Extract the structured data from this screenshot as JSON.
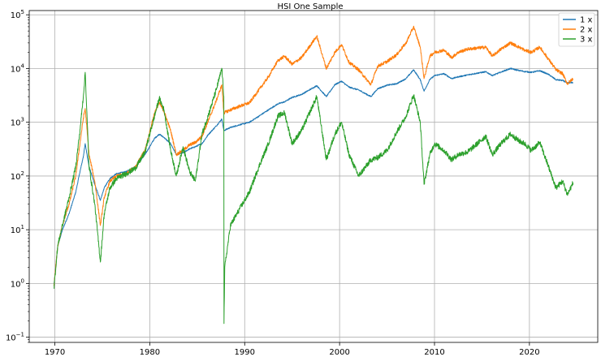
{
  "chart_data": {
    "type": "line",
    "title": "HSI One Sample",
    "xlabel": "",
    "ylabel": "",
    "xlim": [
      1967.3,
      2027.2
    ],
    "ylim": [
      0.08,
      120000
    ],
    "yscale": "log",
    "grid": true,
    "legend": "top-right",
    "x_ticks": [
      1970,
      1980,
      1990,
      2000,
      2010,
      2020
    ],
    "y_ticks": [
      {
        "value": 0.1,
        "base": "10",
        "exp": "−1"
      },
      {
        "value": 1,
        "base": "10",
        "exp": "0"
      },
      {
        "value": 10,
        "base": "10",
        "exp": "1"
      },
      {
        "value": 100,
        "base": "10",
        "exp": "2"
      },
      {
        "value": 1000,
        "base": "10",
        "exp": "3"
      },
      {
        "value": 10000,
        "base": "10",
        "exp": "4"
      },
      {
        "value": 100000,
        "base": "10",
        "exp": "5"
      }
    ],
    "series": [
      {
        "name": "1 x",
        "color": "#1f77b4",
        "x": [
          1969.9,
          1970.3,
          1970.8,
          1971.5,
          1972.2,
          1972.6,
          1973.0,
          1973.2,
          1973.6,
          1974.2,
          1974.8,
          1975.2,
          1975.8,
          1976.5,
          1977.5,
          1978.5,
          1979.5,
          1980.5,
          1981.0,
          1981.5,
          1982.2,
          1982.8,
          1983.5,
          1984.2,
          1984.8,
          1985.5,
          1986.2,
          1987.0,
          1987.6,
          1987.8,
          1988.5,
          1989.5,
          1990.5,
          1991.5,
          1992.5,
          1993.5,
          1994.2,
          1995.0,
          1996.0,
          1997.6,
          1998.6,
          1999.5,
          2000.2,
          2001.0,
          2002.0,
          2003.3,
          2004.0,
          2005.0,
          2006.0,
          2007.0,
          2007.8,
          2008.5,
          2008.9,
          2009.5,
          2010.0,
          2011.0,
          2011.8,
          2012.5,
          2013.5,
          2014.5,
          2015.4,
          2016.1,
          2017.0,
          2018.0,
          2018.9,
          2019.5,
          2020.2,
          2021.1,
          2022.0,
          2022.8,
          2023.5,
          2024.0,
          2024.6
        ],
        "values": [
          0.9,
          5,
          10,
          20,
          50,
          110,
          230,
          400,
          150,
          70,
          35,
          60,
          90,
          110,
          120,
          150,
          250,
          500,
          600,
          520,
          400,
          250,
          270,
          320,
          350,
          400,
          600,
          850,
          1150,
          700,
          800,
          900,
          1000,
          1300,
          1700,
          2200,
          2400,
          2900,
          3300,
          4800,
          3000,
          5000,
          5800,
          4500,
          4000,
          3000,
          4200,
          4900,
          5200,
          6500,
          9500,
          6200,
          3800,
          6200,
          7400,
          8000,
          6500,
          7000,
          7600,
          8200,
          8700,
          7400,
          8600,
          10000,
          9200,
          8800,
          8500,
          9100,
          7800,
          6200,
          6000,
          5400,
          5500
        ]
      },
      {
        "name": "2 x",
        "color": "#ff7f0e",
        "x": [
          1969.9,
          1970.3,
          1970.8,
          1971.5,
          1972.2,
          1972.6,
          1973.0,
          1973.2,
          1973.6,
          1974.2,
          1974.8,
          1975.2,
          1975.8,
          1976.5,
          1977.5,
          1978.5,
          1979.5,
          1980.5,
          1981.0,
          1981.5,
          1982.2,
          1982.8,
          1983.5,
          1984.2,
          1984.8,
          1985.5,
          1986.2,
          1987.0,
          1987.6,
          1987.8,
          1988.5,
          1989.5,
          1990.5,
          1991.5,
          1992.5,
          1993.5,
          1994.2,
          1995.0,
          1996.0,
          1997.6,
          1998.6,
          1999.5,
          2000.2,
          2001.0,
          2002.0,
          2003.3,
          2004.0,
          2005.0,
          2006.0,
          2007.0,
          2007.8,
          2008.5,
          2008.9,
          2009.5,
          2010.0,
          2011.0,
          2011.8,
          2012.5,
          2013.5,
          2014.5,
          2015.4,
          2016.1,
          2017.0,
          2018.0,
          2018.9,
          2019.5,
          2020.2,
          2021.1,
          2022.0,
          2022.8,
          2023.5,
          2024.0,
          2024.6
        ],
        "values": [
          0.9,
          5,
          12,
          30,
          100,
          350,
          1200,
          1800,
          250,
          80,
          12,
          40,
          80,
          100,
          110,
          150,
          300,
          1500,
          2300,
          1600,
          700,
          250,
          300,
          380,
          420,
          550,
          1100,
          2500,
          5000,
          1500,
          1700,
          2000,
          2300,
          4000,
          7000,
          14000,
          17000,
          12000,
          16000,
          40000,
          10000,
          20000,
          28000,
          13000,
          9500,
          5000,
          11000,
          13500,
          18000,
          30000,
          60000,
          25000,
          6500,
          17000,
          20000,
          22000,
          16000,
          20000,
          23000,
          24000,
          25000,
          17000,
          23000,
          30000,
          25000,
          22000,
          20000,
          25000,
          15000,
          9500,
          8000,
          5200,
          6500
        ]
      },
      {
        "name": "3 x",
        "color": "#2ca02c",
        "x": [
          1969.9,
          1970.3,
          1970.8,
          1971.5,
          1972.2,
          1972.6,
          1973.0,
          1973.2,
          1973.6,
          1974.2,
          1974.8,
          1975.2,
          1975.8,
          1976.5,
          1977.5,
          1978.5,
          1979.5,
          1980.5,
          1981.0,
          1981.5,
          1982.2,
          1982.8,
          1983.5,
          1984.2,
          1984.8,
          1985.5,
          1986.2,
          1987.0,
          1987.6,
          1987.8,
          1987.82,
          1987.9,
          1988.5,
          1989.5,
          1990.5,
          1991.5,
          1992.5,
          1993.5,
          1994.2,
          1995.0,
          1996.0,
          1997.6,
          1998.6,
          1999.5,
          2000.2,
          2001.0,
          2002.0,
          2003.3,
          2004.0,
          2005.0,
          2006.0,
          2007.0,
          2007.8,
          2008.5,
          2008.9,
          2009.5,
          2010.0,
          2011.0,
          2011.8,
          2012.5,
          2013.5,
          2014.5,
          2015.4,
          2016.1,
          2017.0,
          2018.0,
          2018.9,
          2019.5,
          2020.2,
          2021.1,
          2022.0,
          2022.8,
          2023.5,
          2024.0,
          2024.6
        ],
        "values": [
          0.8,
          5,
          12,
          40,
          150,
          600,
          3000,
          8500,
          150,
          30,
          2.5,
          20,
          60,
          90,
          110,
          140,
          280,
          1300,
          2800,
          1700,
          300,
          100,
          350,
          120,
          80,
          600,
          1400,
          4000,
          10000,
          3000,
          0.18,
          2.0,
          12,
          25,
          50,
          150,
          400,
          1300,
          1500,
          400,
          700,
          3000,
          200,
          600,
          1000,
          250,
          100,
          200,
          220,
          300,
          650,
          1300,
          3200,
          1000,
          70,
          250,
          400,
          300,
          200,
          250,
          280,
          400,
          550,
          250,
          400,
          600,
          450,
          400,
          300,
          420,
          150,
          60,
          80,
          45,
          75
        ]
      }
    ]
  }
}
